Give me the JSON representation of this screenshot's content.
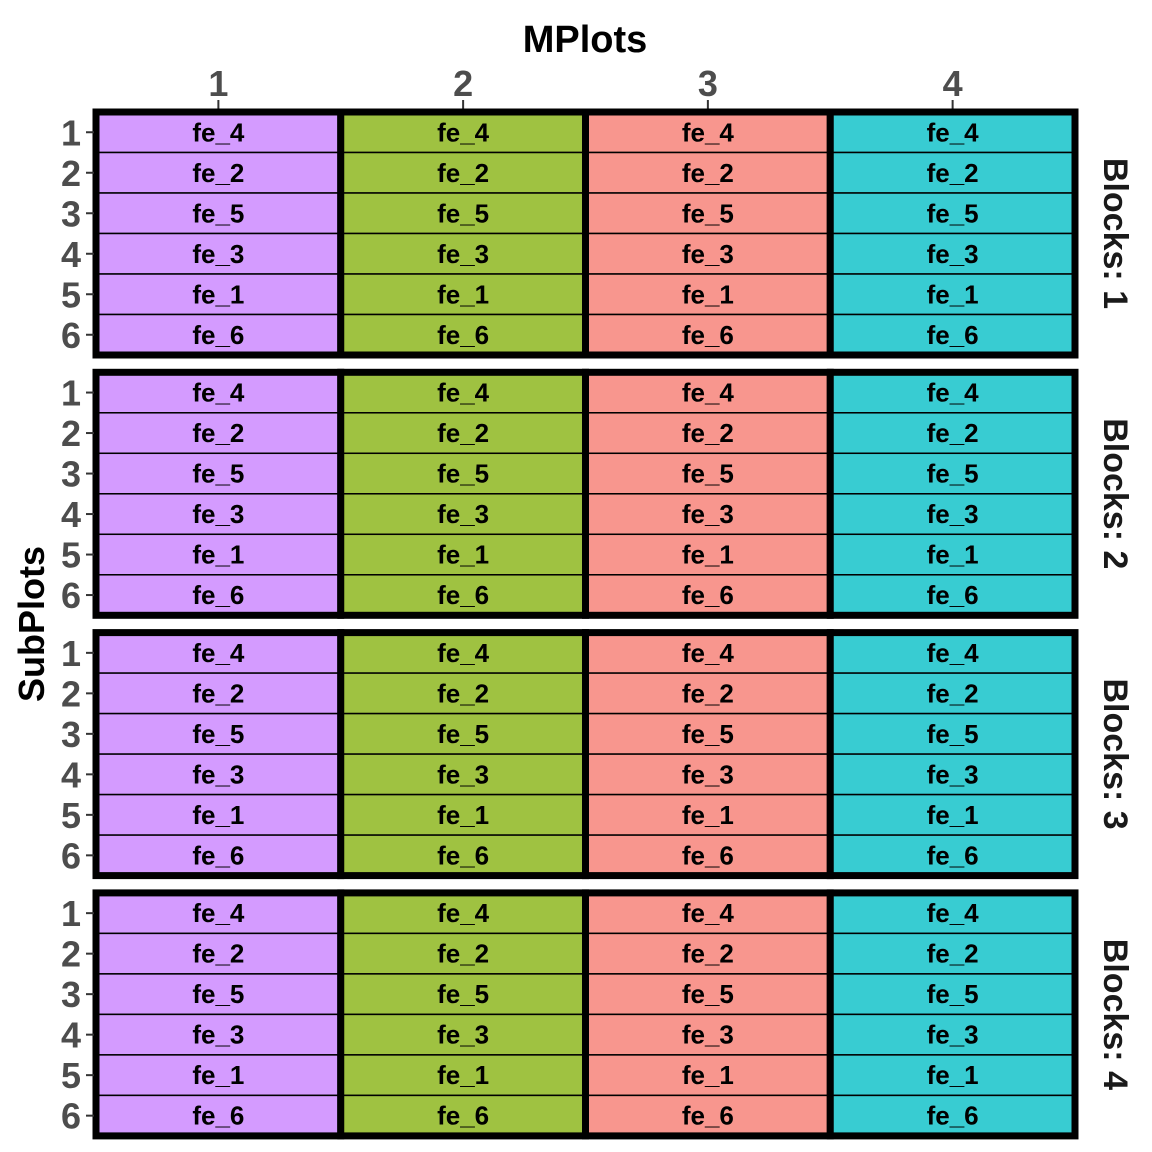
{
  "title": "MPlots",
  "x_axis_title": "MPlots",
  "y_axis_title": "SubPlots",
  "x_ticks": [
    "1",
    "2",
    "3",
    "4"
  ],
  "y_ticks": [
    "1",
    "2",
    "3",
    "4",
    "5",
    "6"
  ],
  "facet_labels": [
    "Blocks: 1",
    "Blocks: 2",
    "Blocks: 3",
    "Blocks: 4"
  ],
  "mplot_colors": [
    "#d49bff",
    "#9fc241",
    "#f8968e",
    "#38ccd2"
  ],
  "subplot_treatments": [
    "fe_4",
    "fe_2",
    "fe_5",
    "fe_3",
    "fe_1",
    "fe_6"
  ],
  "colors": {
    "tick_text": "#4d4d4d",
    "border": "#000000",
    "cell_text": "#000000"
  }
}
